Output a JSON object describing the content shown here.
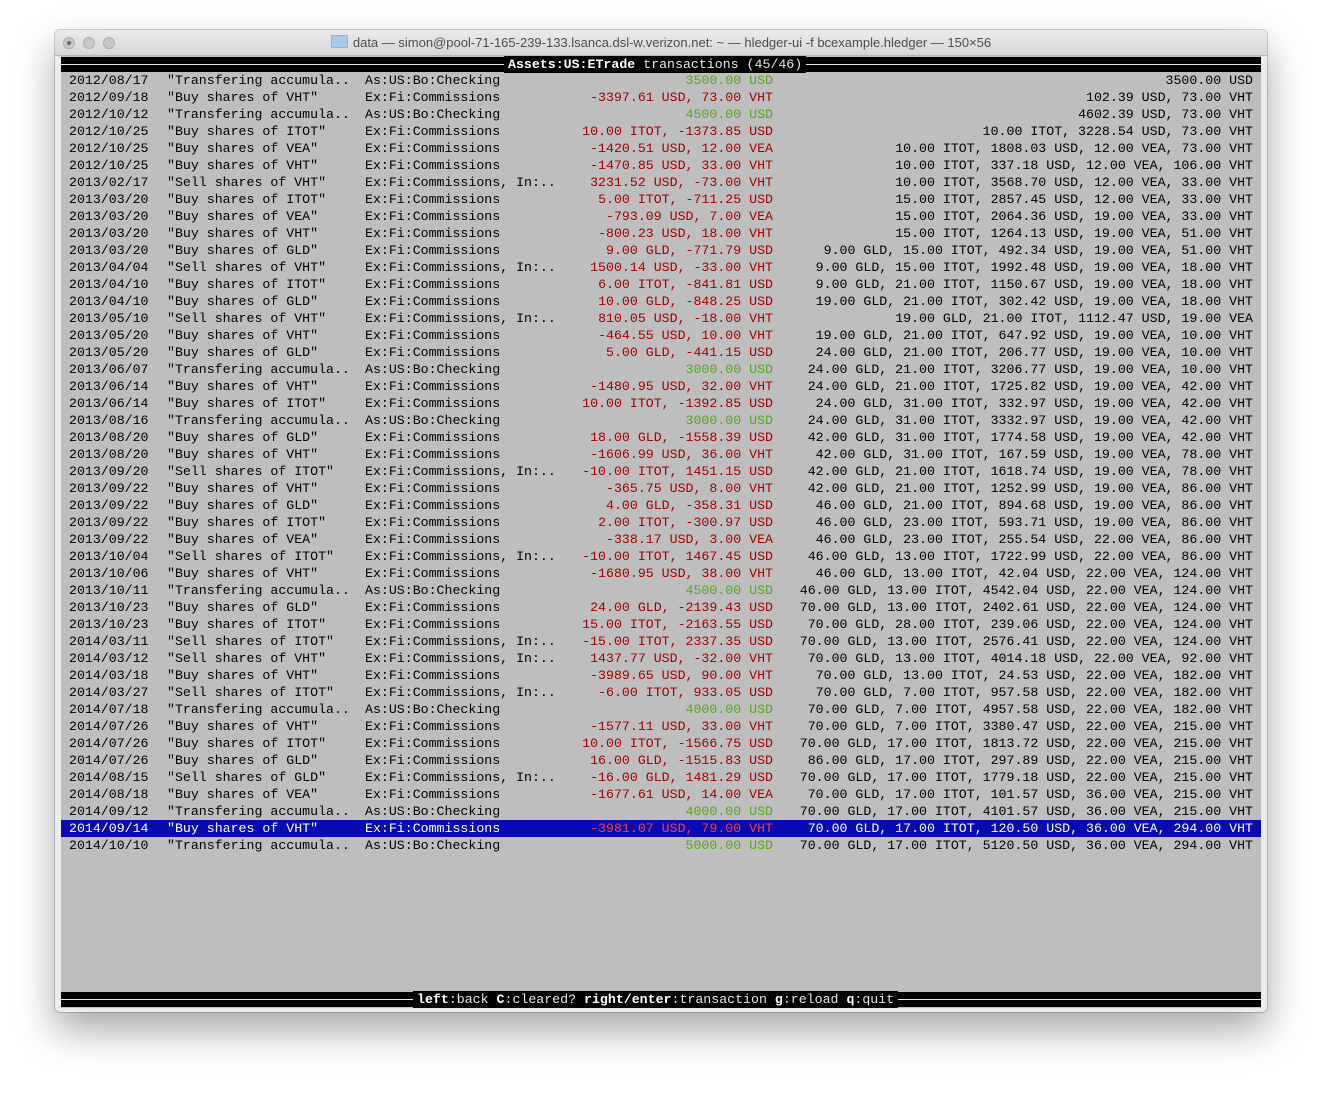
{
  "window": {
    "title": "data — simon@pool-71-165-239-133.lsanca.dsl-w.verizon.net: ~ — hledger-ui -f bcexample.hledger — 150×56"
  },
  "header": {
    "account": "Assets:US:ETrade",
    "label": " transactions (45/46)"
  },
  "colors": {
    "negative": "#a40000",
    "positive": "#55a81a",
    "selected_bg": "#0a0ab4",
    "background": "#bebebe"
  },
  "transactions": [
    {
      "date": "2012/08/17",
      "desc": "\"Transfering accumula..",
      "account": "As:US:Bo:Checking",
      "amount": "3500.00 USD",
      "balance": "3500.00 USD",
      "sign": "pos"
    },
    {
      "date": "2012/09/18",
      "desc": "\"Buy shares of VHT\"",
      "account": "Ex:Fi:Commissions",
      "amount": "-3397.61 USD, 73.00 VHT",
      "balance": "102.39 USD, 73.00 VHT",
      "sign": "neg"
    },
    {
      "date": "2012/10/12",
      "desc": "\"Transfering accumula..",
      "account": "As:US:Bo:Checking",
      "amount": "4500.00 USD",
      "balance": "4602.39 USD, 73.00 VHT",
      "sign": "pos"
    },
    {
      "date": "2012/10/25",
      "desc": "\"Buy shares of ITOT\"",
      "account": "Ex:Fi:Commissions",
      "amount": "10.00 ITOT, -1373.85 USD",
      "balance": "10.00 ITOT, 3228.54 USD, 73.00 VHT",
      "sign": "neg"
    },
    {
      "date": "2012/10/25",
      "desc": "\"Buy shares of VEA\"",
      "account": "Ex:Fi:Commissions",
      "amount": "-1420.51 USD, 12.00 VEA",
      "balance": "10.00 ITOT, 1808.03 USD, 12.00 VEA, 73.00 VHT",
      "sign": "neg"
    },
    {
      "date": "2012/10/25",
      "desc": "\"Buy shares of VHT\"",
      "account": "Ex:Fi:Commissions",
      "amount": "-1470.85 USD, 33.00 VHT",
      "balance": "10.00 ITOT, 337.18 USD, 12.00 VEA, 106.00 VHT",
      "sign": "neg"
    },
    {
      "date": "2013/02/17",
      "desc": "\"Sell shares of VHT\"",
      "account": "Ex:Fi:Commissions, In:..",
      "amount": "3231.52 USD, -73.00 VHT",
      "balance": "10.00 ITOT, 3568.70 USD, 12.00 VEA, 33.00 VHT",
      "sign": "neg"
    },
    {
      "date": "2013/03/20",
      "desc": "\"Buy shares of ITOT\"",
      "account": "Ex:Fi:Commissions",
      "amount": "5.00 ITOT, -711.25 USD",
      "balance": "15.00 ITOT, 2857.45 USD, 12.00 VEA, 33.00 VHT",
      "sign": "neg"
    },
    {
      "date": "2013/03/20",
      "desc": "\"Buy shares of VEA\"",
      "account": "Ex:Fi:Commissions",
      "amount": "-793.09 USD, 7.00 VEA",
      "balance": "15.00 ITOT, 2064.36 USD, 19.00 VEA, 33.00 VHT",
      "sign": "neg"
    },
    {
      "date": "2013/03/20",
      "desc": "\"Buy shares of VHT\"",
      "account": "Ex:Fi:Commissions",
      "amount": "-800.23 USD, 18.00 VHT",
      "balance": "15.00 ITOT, 1264.13 USD, 19.00 VEA, 51.00 VHT",
      "sign": "neg"
    },
    {
      "date": "2013/03/20",
      "desc": "\"Buy shares of GLD\"",
      "account": "Ex:Fi:Commissions",
      "amount": "9.00 GLD, -771.79 USD",
      "balance": "9.00 GLD, 15.00 ITOT, 492.34 USD, 19.00 VEA, 51.00 VHT",
      "sign": "neg"
    },
    {
      "date": "2013/04/04",
      "desc": "\"Sell shares of VHT\"",
      "account": "Ex:Fi:Commissions, In:..",
      "amount": "1500.14 USD, -33.00 VHT",
      "balance": "9.00 GLD, 15.00 ITOT, 1992.48 USD, 19.00 VEA, 18.00 VHT",
      "sign": "neg"
    },
    {
      "date": "2013/04/10",
      "desc": "\"Buy shares of ITOT\"",
      "account": "Ex:Fi:Commissions",
      "amount": "6.00 ITOT, -841.81 USD",
      "balance": "9.00 GLD, 21.00 ITOT, 1150.67 USD, 19.00 VEA, 18.00 VHT",
      "sign": "neg"
    },
    {
      "date": "2013/04/10",
      "desc": "\"Buy shares of GLD\"",
      "account": "Ex:Fi:Commissions",
      "amount": "10.00 GLD, -848.25 USD",
      "balance": "19.00 GLD, 21.00 ITOT, 302.42 USD, 19.00 VEA, 18.00 VHT",
      "sign": "neg"
    },
    {
      "date": "2013/05/10",
      "desc": "\"Sell shares of VHT\"",
      "account": "Ex:Fi:Commissions, In:..",
      "amount": "810.05 USD, -18.00 VHT",
      "balance": "19.00 GLD, 21.00 ITOT, 1112.47 USD, 19.00 VEA",
      "sign": "neg"
    },
    {
      "date": "2013/05/20",
      "desc": "\"Buy shares of VHT\"",
      "account": "Ex:Fi:Commissions",
      "amount": "-464.55 USD, 10.00 VHT",
      "balance": "19.00 GLD, 21.00 ITOT, 647.92 USD, 19.00 VEA, 10.00 VHT",
      "sign": "neg"
    },
    {
      "date": "2013/05/20",
      "desc": "\"Buy shares of GLD\"",
      "account": "Ex:Fi:Commissions",
      "amount": "5.00 GLD, -441.15 USD",
      "balance": "24.00 GLD, 21.00 ITOT, 206.77 USD, 19.00 VEA, 10.00 VHT",
      "sign": "neg"
    },
    {
      "date": "2013/06/07",
      "desc": "\"Transfering accumula..",
      "account": "As:US:Bo:Checking",
      "amount": "3000.00 USD",
      "balance": "24.00 GLD, 21.00 ITOT, 3206.77 USD, 19.00 VEA, 10.00 VHT",
      "sign": "pos"
    },
    {
      "date": "2013/06/14",
      "desc": "\"Buy shares of VHT\"",
      "account": "Ex:Fi:Commissions",
      "amount": "-1480.95 USD, 32.00 VHT",
      "balance": "24.00 GLD, 21.00 ITOT, 1725.82 USD, 19.00 VEA, 42.00 VHT",
      "sign": "neg"
    },
    {
      "date": "2013/06/14",
      "desc": "\"Buy shares of ITOT\"",
      "account": "Ex:Fi:Commissions",
      "amount": "10.00 ITOT, -1392.85 USD",
      "balance": "24.00 GLD, 31.00 ITOT, 332.97 USD, 19.00 VEA, 42.00 VHT",
      "sign": "neg"
    },
    {
      "date": "2013/08/16",
      "desc": "\"Transfering accumula..",
      "account": "As:US:Bo:Checking",
      "amount": "3000.00 USD",
      "balance": "24.00 GLD, 31.00 ITOT, 3332.97 USD, 19.00 VEA, 42.00 VHT",
      "sign": "pos"
    },
    {
      "date": "2013/08/20",
      "desc": "\"Buy shares of GLD\"",
      "account": "Ex:Fi:Commissions",
      "amount": "18.00 GLD, -1558.39 USD",
      "balance": "42.00 GLD, 31.00 ITOT, 1774.58 USD, 19.00 VEA, 42.00 VHT",
      "sign": "neg"
    },
    {
      "date": "2013/08/20",
      "desc": "\"Buy shares of VHT\"",
      "account": "Ex:Fi:Commissions",
      "amount": "-1606.99 USD, 36.00 VHT",
      "balance": "42.00 GLD, 31.00 ITOT, 167.59 USD, 19.00 VEA, 78.00 VHT",
      "sign": "neg"
    },
    {
      "date": "2013/09/20",
      "desc": "\"Sell shares of ITOT\"",
      "account": "Ex:Fi:Commissions, In:..",
      "amount": "-10.00 ITOT, 1451.15 USD",
      "balance": "42.00 GLD, 21.00 ITOT, 1618.74 USD, 19.00 VEA, 78.00 VHT",
      "sign": "neg"
    },
    {
      "date": "2013/09/22",
      "desc": "\"Buy shares of VHT\"",
      "account": "Ex:Fi:Commissions",
      "amount": "-365.75 USD, 8.00 VHT",
      "balance": "42.00 GLD, 21.00 ITOT, 1252.99 USD, 19.00 VEA, 86.00 VHT",
      "sign": "neg"
    },
    {
      "date": "2013/09/22",
      "desc": "\"Buy shares of GLD\"",
      "account": "Ex:Fi:Commissions",
      "amount": "4.00 GLD, -358.31 USD",
      "balance": "46.00 GLD, 21.00 ITOT, 894.68 USD, 19.00 VEA, 86.00 VHT",
      "sign": "neg"
    },
    {
      "date": "2013/09/22",
      "desc": "\"Buy shares of ITOT\"",
      "account": "Ex:Fi:Commissions",
      "amount": "2.00 ITOT, -300.97 USD",
      "balance": "46.00 GLD, 23.00 ITOT, 593.71 USD, 19.00 VEA, 86.00 VHT",
      "sign": "neg"
    },
    {
      "date": "2013/09/22",
      "desc": "\"Buy shares of VEA\"",
      "account": "Ex:Fi:Commissions",
      "amount": "-338.17 USD, 3.00 VEA",
      "balance": "46.00 GLD, 23.00 ITOT, 255.54 USD, 22.00 VEA, 86.00 VHT",
      "sign": "neg"
    },
    {
      "date": "2013/10/04",
      "desc": "\"Sell shares of ITOT\"",
      "account": "Ex:Fi:Commissions, In:..",
      "amount": "-10.00 ITOT, 1467.45 USD",
      "balance": "46.00 GLD, 13.00 ITOT, 1722.99 USD, 22.00 VEA, 86.00 VHT",
      "sign": "neg"
    },
    {
      "date": "2013/10/06",
      "desc": "\"Buy shares of VHT\"",
      "account": "Ex:Fi:Commissions",
      "amount": "-1680.95 USD, 38.00 VHT",
      "balance": "46.00 GLD, 13.00 ITOT, 42.04 USD, 22.00 VEA, 124.00 VHT",
      "sign": "neg"
    },
    {
      "date": "2013/10/11",
      "desc": "\"Transfering accumula..",
      "account": "As:US:Bo:Checking",
      "amount": "4500.00 USD",
      "balance": "46.00 GLD, 13.00 ITOT, 4542.04 USD, 22.00 VEA, 124.00 VHT",
      "sign": "pos"
    },
    {
      "date": "2013/10/23",
      "desc": "\"Buy shares of GLD\"",
      "account": "Ex:Fi:Commissions",
      "amount": "24.00 GLD, -2139.43 USD",
      "balance": "70.00 GLD, 13.00 ITOT, 2402.61 USD, 22.00 VEA, 124.00 VHT",
      "sign": "neg"
    },
    {
      "date": "2013/10/23",
      "desc": "\"Buy shares of ITOT\"",
      "account": "Ex:Fi:Commissions",
      "amount": "15.00 ITOT, -2163.55 USD",
      "balance": "70.00 GLD, 28.00 ITOT, 239.06 USD, 22.00 VEA, 124.00 VHT",
      "sign": "neg"
    },
    {
      "date": "2014/03/11",
      "desc": "\"Sell shares of ITOT\"",
      "account": "Ex:Fi:Commissions, In:..",
      "amount": "-15.00 ITOT, 2337.35 USD",
      "balance": "70.00 GLD, 13.00 ITOT, 2576.41 USD, 22.00 VEA, 124.00 VHT",
      "sign": "neg"
    },
    {
      "date": "2014/03/12",
      "desc": "\"Sell shares of VHT\"",
      "account": "Ex:Fi:Commissions, In:..",
      "amount": "1437.77 USD, -32.00 VHT",
      "balance": "70.00 GLD, 13.00 ITOT, 4014.18 USD, 22.00 VEA, 92.00 VHT",
      "sign": "neg"
    },
    {
      "date": "2014/03/18",
      "desc": "\"Buy shares of VHT\"",
      "account": "Ex:Fi:Commissions",
      "amount": "-3989.65 USD, 90.00 VHT",
      "balance": "70.00 GLD, 13.00 ITOT, 24.53 USD, 22.00 VEA, 182.00 VHT",
      "sign": "neg"
    },
    {
      "date": "2014/03/27",
      "desc": "\"Sell shares of ITOT\"",
      "account": "Ex:Fi:Commissions, In:..",
      "amount": "-6.00 ITOT, 933.05 USD",
      "balance": "70.00 GLD, 7.00 ITOT, 957.58 USD, 22.00 VEA, 182.00 VHT",
      "sign": "neg"
    },
    {
      "date": "2014/07/18",
      "desc": "\"Transfering accumula..",
      "account": "As:US:Bo:Checking",
      "amount": "4000.00 USD",
      "balance": "70.00 GLD, 7.00 ITOT, 4957.58 USD, 22.00 VEA, 182.00 VHT",
      "sign": "pos"
    },
    {
      "date": "2014/07/26",
      "desc": "\"Buy shares of VHT\"",
      "account": "Ex:Fi:Commissions",
      "amount": "-1577.11 USD, 33.00 VHT",
      "balance": "70.00 GLD, 7.00 ITOT, 3380.47 USD, 22.00 VEA, 215.00 VHT",
      "sign": "neg"
    },
    {
      "date": "2014/07/26",
      "desc": "\"Buy shares of ITOT\"",
      "account": "Ex:Fi:Commissions",
      "amount": "10.00 ITOT, -1566.75 USD",
      "balance": "70.00 GLD, 17.00 ITOT, 1813.72 USD, 22.00 VEA, 215.00 VHT",
      "sign": "neg"
    },
    {
      "date": "2014/07/26",
      "desc": "\"Buy shares of GLD\"",
      "account": "Ex:Fi:Commissions",
      "amount": "16.00 GLD, -1515.83 USD",
      "balance": "86.00 GLD, 17.00 ITOT, 297.89 USD, 22.00 VEA, 215.00 VHT",
      "sign": "neg"
    },
    {
      "date": "2014/08/15",
      "desc": "\"Sell shares of GLD\"",
      "account": "Ex:Fi:Commissions, In:..",
      "amount": "-16.00 GLD, 1481.29 USD",
      "balance": "70.00 GLD, 17.00 ITOT, 1779.18 USD, 22.00 VEA, 215.00 VHT",
      "sign": "neg"
    },
    {
      "date": "2014/08/18",
      "desc": "\"Buy shares of VEA\"",
      "account": "Ex:Fi:Commissions",
      "amount": "-1677.61 USD, 14.00 VEA",
      "balance": "70.00 GLD, 17.00 ITOT, 101.57 USD, 36.00 VEA, 215.00 VHT",
      "sign": "neg"
    },
    {
      "date": "2014/09/12",
      "desc": "\"Transfering accumula..",
      "account": "As:US:Bo:Checking",
      "amount": "4000.00 USD",
      "balance": "70.00 GLD, 17.00 ITOT, 4101.57 USD, 36.00 VEA, 215.00 VHT",
      "sign": "pos"
    },
    {
      "date": "2014/09/14",
      "desc": "\"Buy shares of VHT\"",
      "account": "Ex:Fi:Commissions",
      "amount": "-3981.07 USD, 79.00 VHT",
      "balance": "70.00 GLD, 17.00 ITOT, 120.50 USD, 36.00 VEA, 294.00 VHT",
      "sign": "neg",
      "selected": true
    },
    {
      "date": "2014/10/10",
      "desc": "\"Transfering accumula..",
      "account": "As:US:Bo:Checking",
      "amount": "5000.00 USD",
      "balance": "70.00 GLD, 17.00 ITOT, 5120.50 USD, 36.00 VEA, 294.00 VHT",
      "sign": "pos"
    }
  ],
  "footer": {
    "keys": [
      {
        "key": "left",
        "action": "back"
      },
      {
        "key": "C",
        "action": "cleared?"
      },
      {
        "key": "right/enter",
        "action": "transaction"
      },
      {
        "key": "g",
        "action": "reload"
      },
      {
        "key": "q",
        "action": "quit"
      }
    ]
  }
}
